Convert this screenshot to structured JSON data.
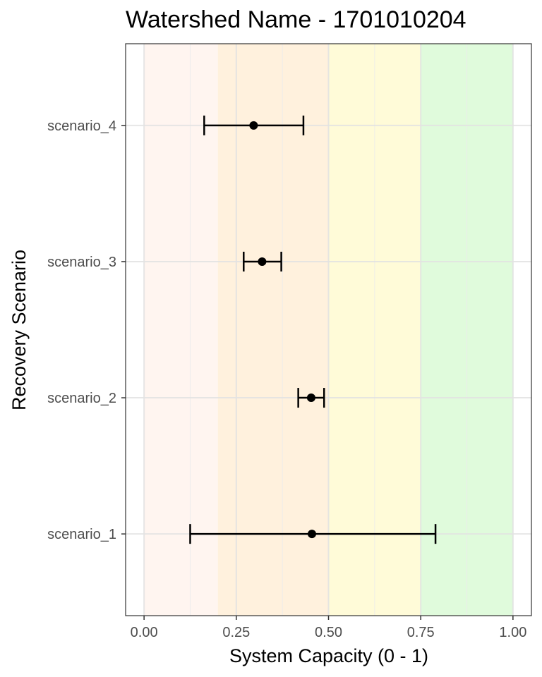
{
  "chart_data": {
    "type": "errorbar",
    "title": "Watershed Name - 1701010204",
    "xlabel": "System Capacity (0 - 1)",
    "ylabel": "Recovery Scenario",
    "xlim": [
      -0.05,
      1.05
    ],
    "xticks": [
      0,
      0.25,
      0.5,
      0.75,
      1
    ],
    "xtick_labels": [
      "0.00",
      "0.25",
      "0.50",
      "0.75",
      "1.00"
    ],
    "categories": [
      "scenario_1",
      "scenario_2",
      "scenario_3",
      "scenario_4"
    ],
    "points": [
      {
        "category": "scenario_1",
        "mean": 0.455,
        "lower": 0.125,
        "upper": 0.79
      },
      {
        "category": "scenario_2",
        "mean": 0.453,
        "lower": 0.418,
        "upper": 0.488
      },
      {
        "category": "scenario_3",
        "mean": 0.32,
        "lower": 0.27,
        "upper": 0.372
      },
      {
        "category": "scenario_4",
        "mean": 0.297,
        "lower": 0.163,
        "upper": 0.432
      }
    ],
    "bands": [
      {
        "from": 0,
        "to": 0.2,
        "color": "#fff5f0"
      },
      {
        "from": 0.2,
        "to": 0.5,
        "color": "#fff1dd"
      },
      {
        "from": 0.5,
        "to": 0.75,
        "color": "#fffbd8"
      },
      {
        "from": 0.75,
        "to": 1,
        "color": "#e0fbdc"
      }
    ],
    "grid": true,
    "point_color": "#000000"
  }
}
